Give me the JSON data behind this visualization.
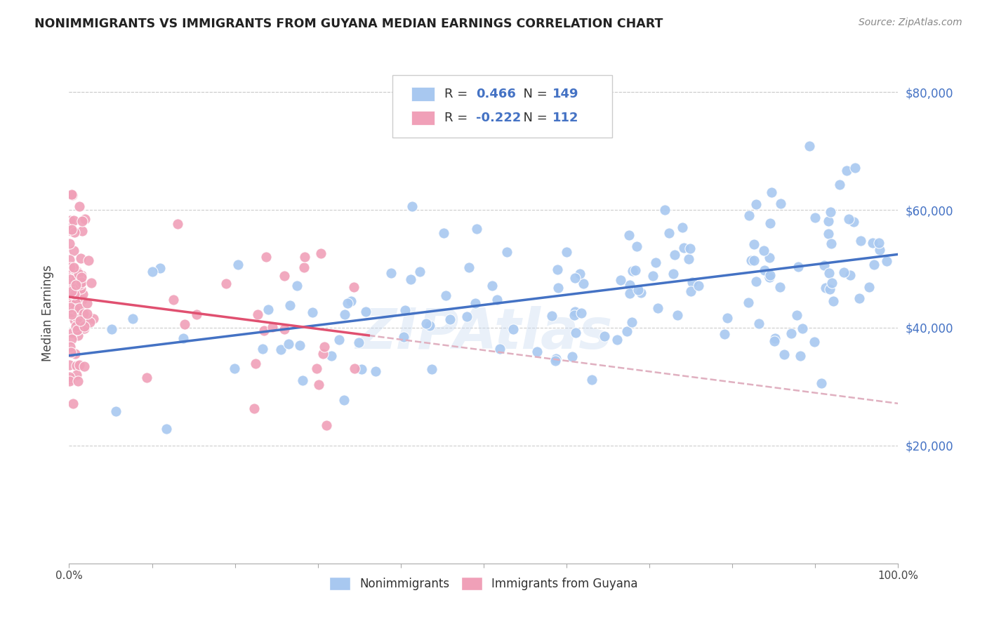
{
  "title": "NONIMMIGRANTS VS IMMIGRANTS FROM GUYANA MEDIAN EARNINGS CORRELATION CHART",
  "source": "Source: ZipAtlas.com",
  "ylabel": "Median Earnings",
  "legend_nonimm": "Nonimmigrants",
  "legend_imm": "Immigrants from Guyana",
  "R_nonimm": 0.466,
  "N_nonimm": 149,
  "R_imm": -0.222,
  "N_imm": 112,
  "nonimm_color": "#a8c8f0",
  "imm_color": "#f0a0b8",
  "nonimm_line_color": "#4472c4",
  "imm_line_color": "#e05070",
  "imm_line_dashed_color": "#e0b0c0",
  "watermark": "ZIPAtlas",
  "ytick_values": [
    20000,
    40000,
    60000,
    80000
  ],
  "ylim": [
    0,
    85000
  ],
  "xlim": [
    0.0,
    1.0
  ],
  "background_color": "#ffffff",
  "title_fontsize": 12.5,
  "legend_box_color": "#f8f8f8",
  "legend_box_edge": "#cccccc"
}
